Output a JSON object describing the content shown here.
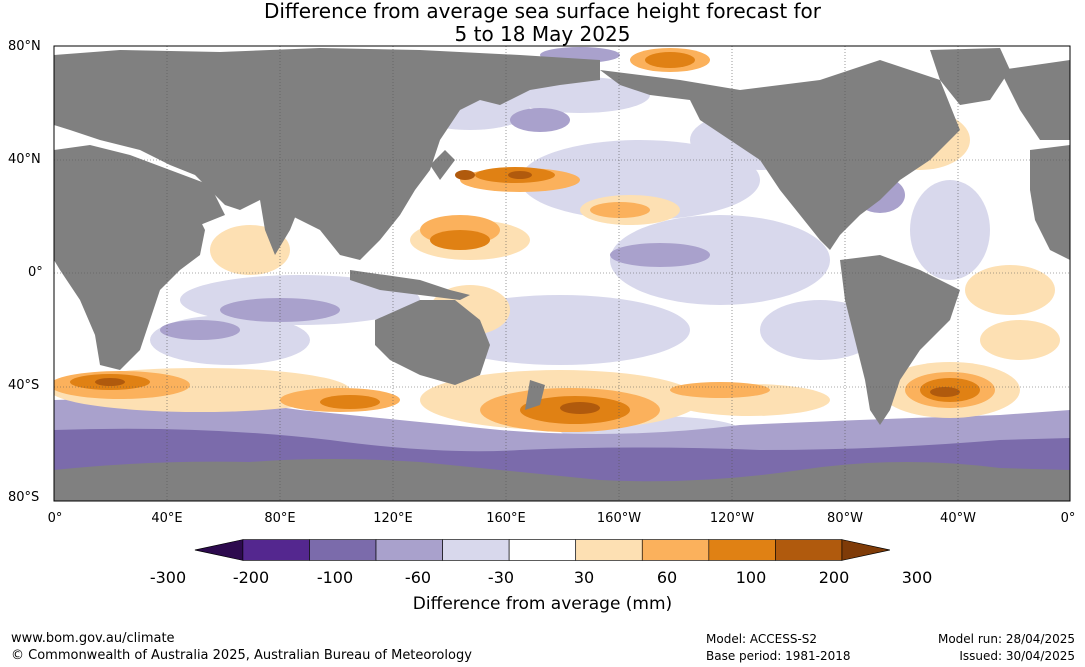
{
  "title_line1": "Difference from average sea surface height forecast for",
  "title_line2": "5 to 18 May 2025",
  "lat_labels": [
    "80°N",
    "40°N",
    "0°",
    "40°S",
    "80°S"
  ],
  "lon_labels": [
    "0°",
    "40°E",
    "80°E",
    "120°E",
    "160°E",
    "160°W",
    "120°W",
    "80°W",
    "40°W",
    "0°"
  ],
  "colorbar": {
    "title": "Difference from average (mm)",
    "ticks": [
      "-300",
      "-200",
      "-100",
      "-60",
      "-30",
      "30",
      "60",
      "100",
      "200",
      "300"
    ],
    "colors": [
      "#2d0a4e",
      "#54278f",
      "#7b6bab",
      "#a9a1cc",
      "#d8d8ec",
      "#ffffff",
      "#fde0b3",
      "#fbb15c",
      "#e08114",
      "#b05a0d",
      "#7f3b08"
    ]
  },
  "colors": {
    "land": "#808080",
    "ocean_neutral": "#ffffff",
    "grid": "#555555"
  },
  "footer": {
    "website": "www.bom.gov.au/climate",
    "copyright": "© Commonwealth of Australia 2025, Australian Bureau of Meteorology",
    "model": "Model: ACCESS-S2",
    "base_period": "Base period: 1981-2018",
    "model_run": "Model run: 28/04/2025",
    "issued": "Issued: 30/04/2025"
  }
}
